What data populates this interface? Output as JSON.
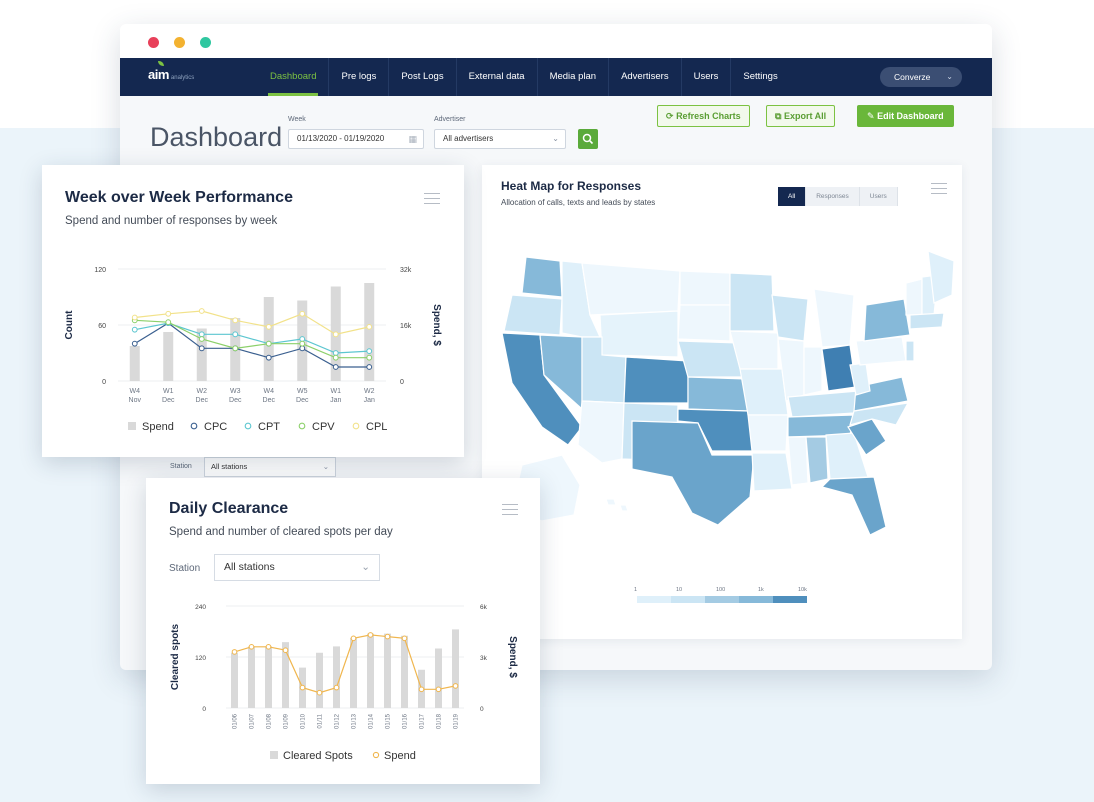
{
  "window": {
    "traffic_lights": [
      "#e8405a",
      "#f3b230",
      "#2fc7a0"
    ]
  },
  "nav": {
    "logo_brand": "aim",
    "logo_sub": "analytics",
    "items": [
      "Dashboard",
      "Pre logs",
      "Post Logs",
      "External data",
      "Media plan",
      "Advertisers",
      "Users",
      "Settings"
    ],
    "active": "Dashboard",
    "account": "Converze",
    "colors": {
      "navbar": "#142850",
      "accent": "#7cc242"
    }
  },
  "toolbar": {
    "title": "Dashboard",
    "week_label": "Week",
    "week_value": "01/13/2020 - 01/19/2020",
    "advertiser_label": "Advertiser",
    "advertiser_value": "All advertisers",
    "refresh_label": "Refresh Charts",
    "export_label": "Export All",
    "edit_label": "Edit Dashboard"
  },
  "heatmap": {
    "title": "Heat Map for Responses",
    "subtitle": "Allocation of calls, texts and leads by states",
    "toggles": [
      "All",
      "Responses",
      "Users"
    ],
    "active_toggle": "All",
    "scale_labels": [
      "1",
      "10",
      "100",
      "1k",
      "10k"
    ]
  },
  "station_strip": {
    "label": "Station",
    "value": "All stations"
  },
  "week_chart": {
    "title": "Week over Week Performance",
    "subtitle": "Spend and number of responses by week",
    "chart_data": {
      "type": "bar",
      "title": "Week over Week Performance",
      "subtitle": "Spend and number of responses by week",
      "categories": [
        [
          "W4",
          "Nov"
        ],
        [
          "W1",
          "Dec"
        ],
        [
          "W2",
          "Dec"
        ],
        [
          "W3",
          "Dec"
        ],
        [
          "W4",
          "Dec"
        ],
        [
          "W5",
          "Dec"
        ],
        [
          "W1",
          "Jan"
        ],
        [
          "W2",
          "Jan"
        ]
      ],
      "ylabel": "Count",
      "ylabel_right": "Spend, $",
      "y_ticks": [
        "120",
        "60",
        "0"
      ],
      "y_right_ticks": [
        "32k",
        "16k",
        "0"
      ],
      "ylim": [
        0,
        120
      ],
      "y_right_lim": [
        0,
        32000
      ],
      "series": [
        {
          "name": "Spend",
          "kind": "bar",
          "axis": "right",
          "color": "#d9d9d9",
          "values": [
            10000,
            14000,
            15000,
            18000,
            24000,
            23000,
            27000,
            28000
          ]
        },
        {
          "name": "CPC",
          "kind": "line",
          "axis": "left",
          "color": "#3a5f8f",
          "values": [
            40,
            62,
            35,
            35,
            25,
            35,
            15,
            15
          ]
        },
        {
          "name": "CPT",
          "kind": "line",
          "axis": "left",
          "color": "#5cc6d0",
          "values": [
            55,
            62,
            50,
            50,
            40,
            45,
            30,
            32
          ]
        },
        {
          "name": "CPV",
          "kind": "line",
          "axis": "left",
          "color": "#8cd06a",
          "values": [
            65,
            63,
            45,
            35,
            40,
            40,
            25,
            25
          ]
        },
        {
          "name": "CPL",
          "kind": "line",
          "axis": "left",
          "color": "#f2e28a",
          "values": [
            68,
            72,
            75,
            65,
            58,
            72,
            50,
            58
          ]
        }
      ],
      "legend": [
        "Spend",
        "CPC",
        "CPT",
        "CPV",
        "CPL"
      ],
      "legend_position": "bottom"
    }
  },
  "daily_chart": {
    "title": "Daily Clearance",
    "subtitle": "Spend and number of cleared spots per day",
    "station_label": "Station",
    "station_value": "All stations",
    "chart_data": {
      "type": "bar",
      "title": "Daily Clearance",
      "subtitle": "Spend and number of cleared spots per day",
      "categories": [
        "01/06",
        "01/07",
        "01/08",
        "01/09",
        "01/10",
        "01/11",
        "01/12",
        "01/13",
        "01/14",
        "01/15",
        "01/16",
        "01/17",
        "01/18",
        "01/19"
      ],
      "ylabel": "Cleared spots",
      "ylabel_right": "Spend, $",
      "y_ticks": [
        "240",
        "120",
        "0"
      ],
      "y_right_ticks": [
        "6k",
        "3k",
        "0"
      ],
      "ylim": [
        0,
        240
      ],
      "y_right_lim": [
        0,
        6000
      ],
      "series": [
        {
          "name": "Cleared Spots",
          "kind": "bar",
          "axis": "left",
          "color": "#d9d9d9",
          "values": [
            130,
            145,
            145,
            155,
            95,
            130,
            145,
            165,
            175,
            175,
            170,
            90,
            140,
            185
          ]
        },
        {
          "name": "Spend",
          "kind": "line",
          "axis": "right",
          "color": "#f0b64e",
          "values": [
            3300,
            3600,
            3600,
            3400,
            1200,
            900,
            1200,
            4100,
            4300,
            4200,
            4100,
            1100,
            1100,
            1300
          ]
        }
      ],
      "legend": [
        "Cleared Spots",
        "Spend"
      ],
      "legend_position": "bottom"
    }
  }
}
